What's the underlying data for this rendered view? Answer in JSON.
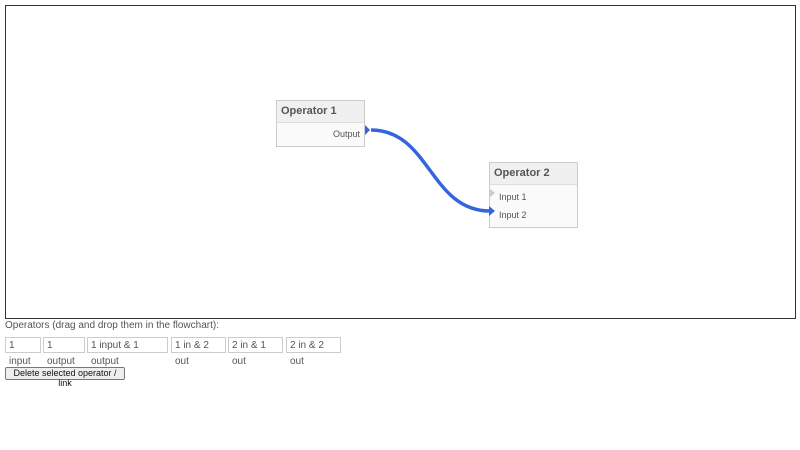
{
  "flowchart": {
    "operators": [
      {
        "title": "Operator 1",
        "outputs": [
          "Output"
        ]
      },
      {
        "title": "Operator 2",
        "inputs": [
          "Input 1",
          "Input 2"
        ]
      }
    ],
    "link_color": "#3366dd"
  },
  "palette": {
    "label": "Operators (drag and drop them in the flowchart):",
    "items": [
      "1 input",
      "1 output",
      "1 input & 1 output",
      "1 in & 2 out",
      "2 in & 1 out",
      "2 in & 2 out"
    ]
  },
  "delete_label": "Delete selected operator / link"
}
